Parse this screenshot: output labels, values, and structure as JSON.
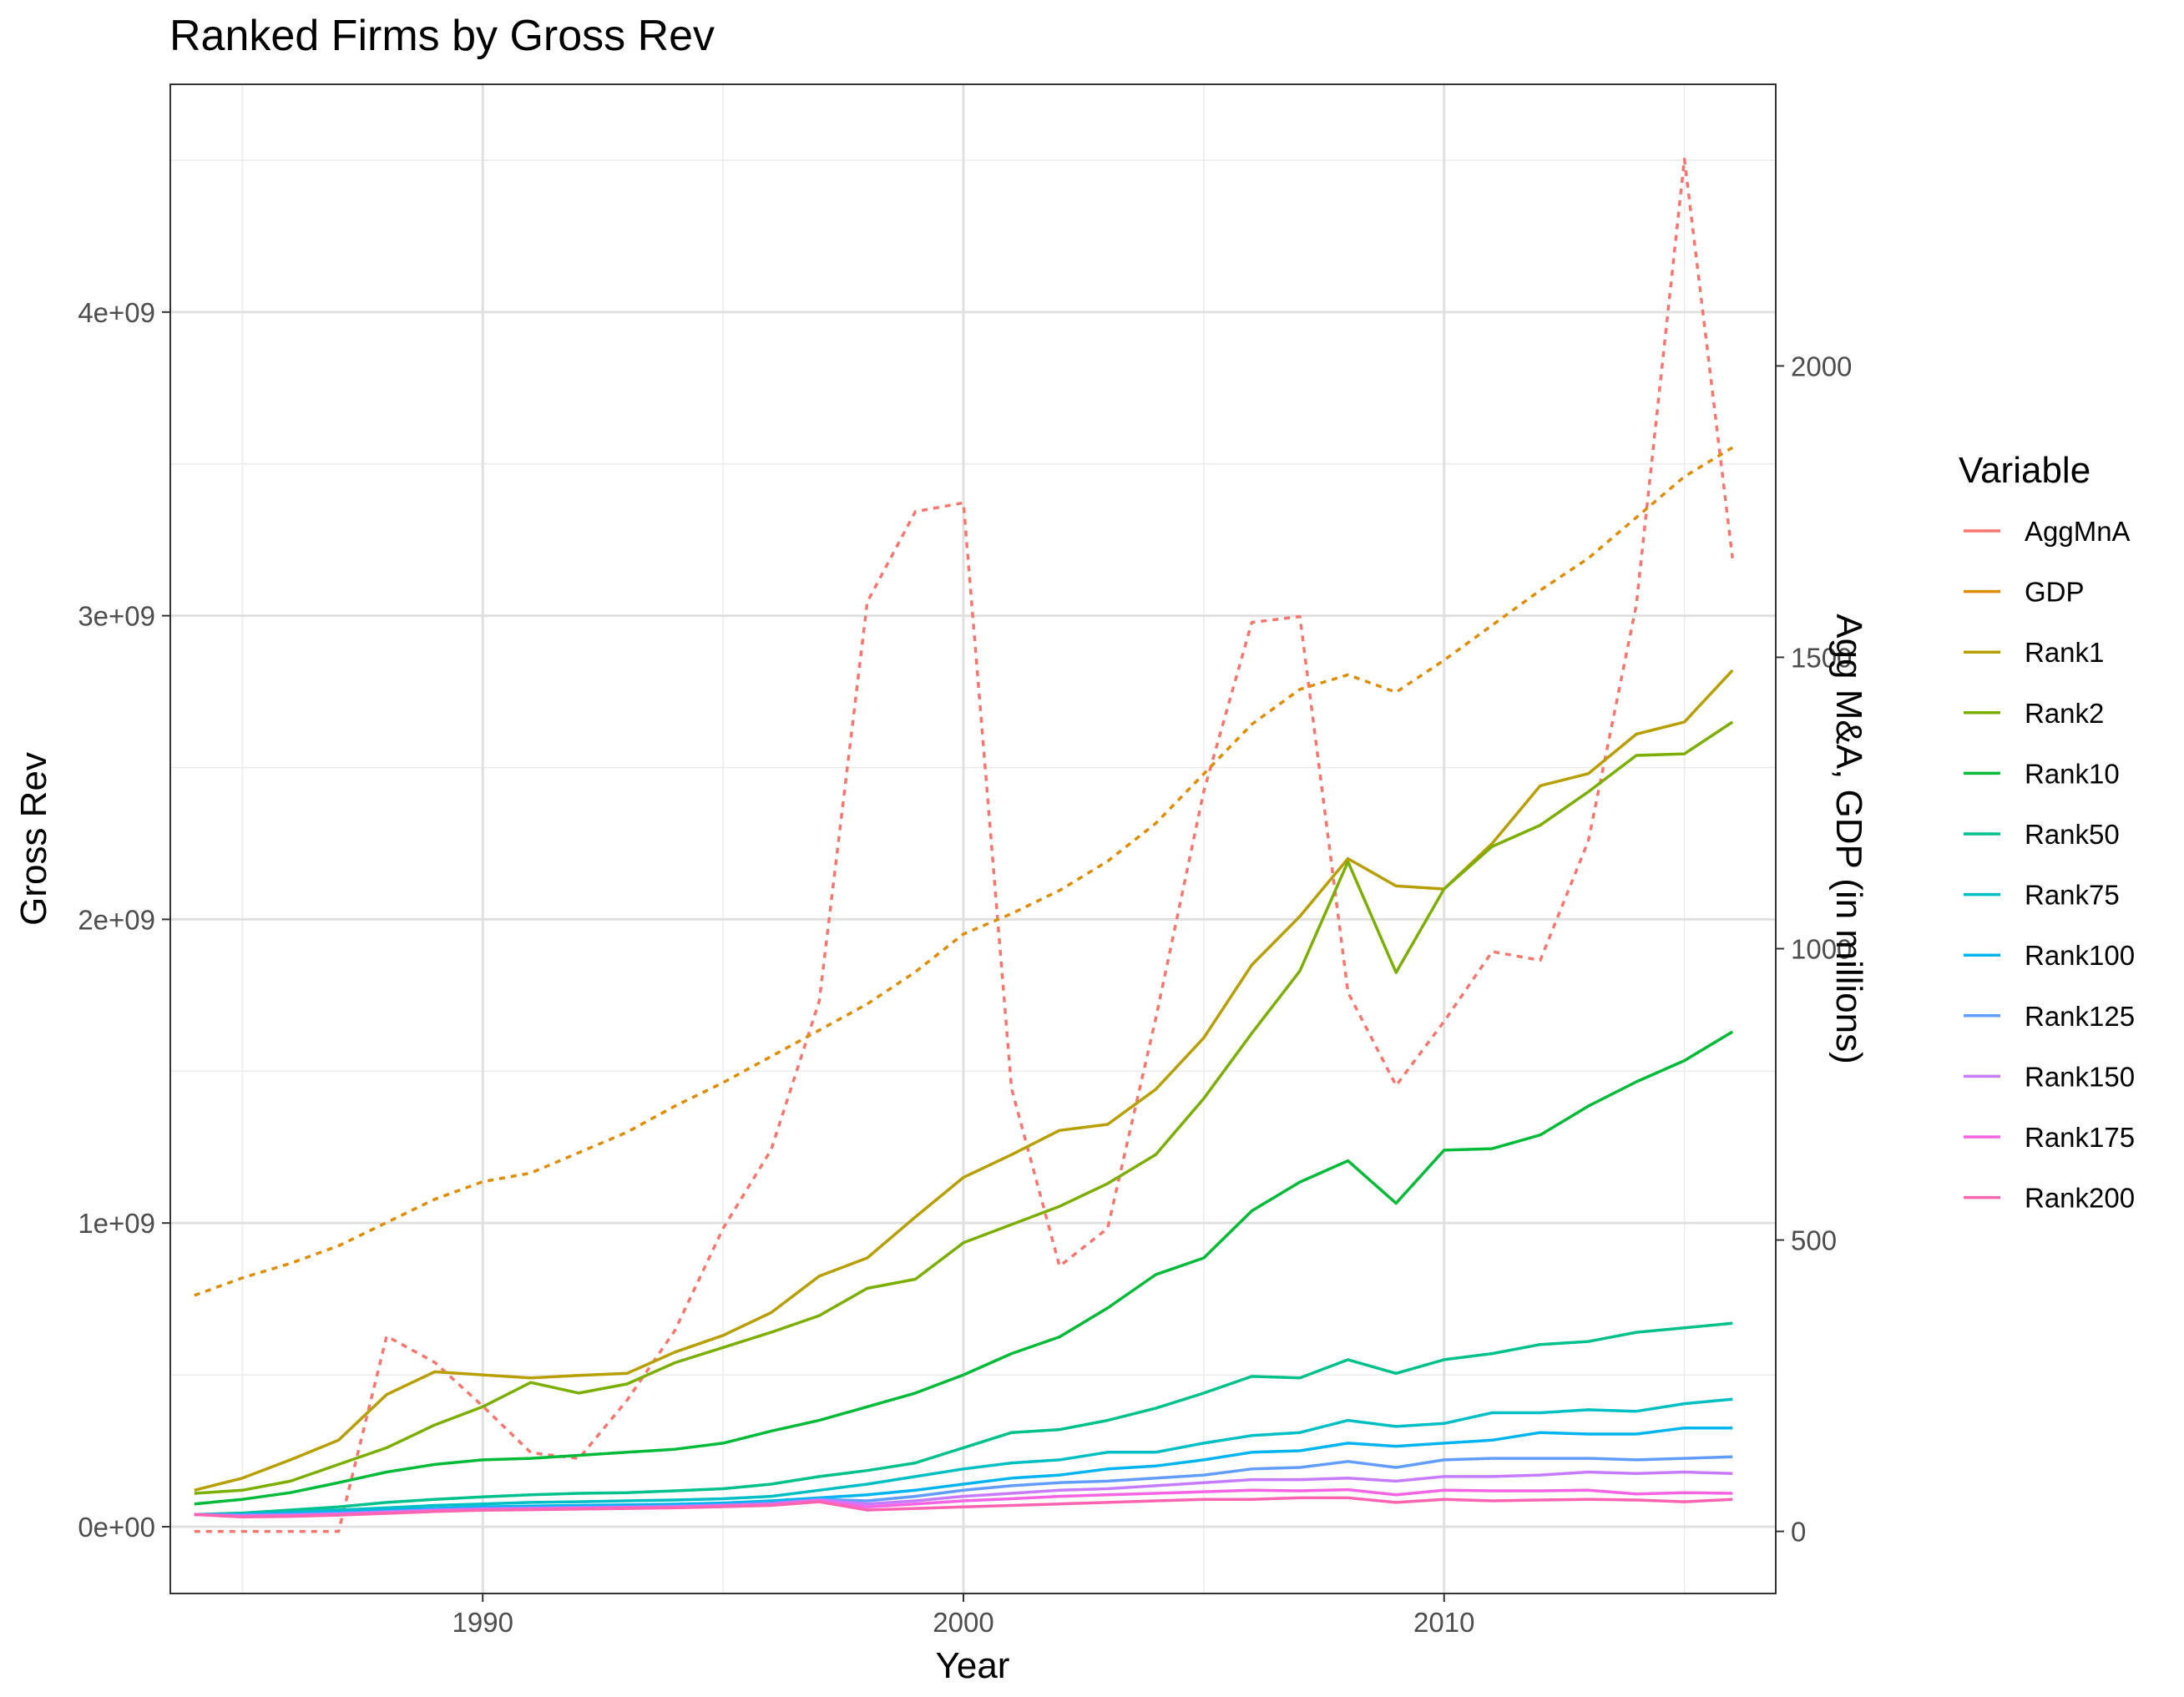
{
  "chart_data": {
    "type": "line",
    "title": "Ranked Firms by Gross Rev",
    "xlabel": "Year",
    "ylabel": "Gross Rev",
    "y2label": "Agg M&A, GDP (in millions)",
    "xlim": [
      1983.5,
      2016.9
    ],
    "ylim": [
      -220000000,
      4750000000
    ],
    "y2lim": [
      -106.6,
      2483.3
    ],
    "x_ticks": [
      1990,
      2000,
      2010
    ],
    "x_tick_labels": [
      "1990",
      "2000",
      "2010"
    ],
    "y_ticks": [
      0,
      1000000000,
      2000000000,
      3000000000,
      4000000000
    ],
    "y_tick_labels": [
      "0e+00",
      "1e+09",
      "2e+09",
      "3e+09",
      "4e+09"
    ],
    "y2_ticks": [
      0,
      500,
      1000,
      1500,
      2000
    ],
    "y2_tick_labels": [
      "0",
      "500",
      "1000",
      "1500",
      "2000"
    ],
    "grid": true,
    "legend": {
      "title": "Variable",
      "placement": "right",
      "entries": [
        "AggMnA",
        "GDP",
        "Rank1",
        "Rank2",
        "Rank10",
        "Rank50",
        "Rank75",
        "Rank100",
        "Rank125",
        "Rank150",
        "Rank175",
        "Rank200"
      ]
    },
    "x": [
      1984,
      1985,
      1986,
      1987,
      1988,
      1989,
      1990,
      1991,
      1992,
      1993,
      1994,
      1995,
      1996,
      1997,
      1998,
      1999,
      2000,
      2001,
      2002,
      2003,
      2004,
      2005,
      2006,
      2007,
      2008,
      2009,
      2010,
      2011,
      2012,
      2013,
      2014,
      2015,
      2016
    ],
    "series": [
      {
        "name": "AggMnA",
        "axis": "right",
        "dash": "dotted",
        "color": "#F8766D",
        "values": [
          0,
          0,
          0,
          0,
          335,
          290,
          215,
          135,
          125,
          225,
          345,
          520,
          655,
          910,
          1595,
          1750,
          1765,
          760,
          455,
          520,
          880,
          1270,
          1560,
          1570,
          925,
          765,
          875,
          995,
          980,
          1185,
          1590,
          2355,
          1670
        ]
      },
      {
        "name": "GDP",
        "axis": "right",
        "dash": "dotted",
        "color": "#DE8C00",
        "values": [
          405,
          435,
          460,
          490,
          530,
          570,
          600,
          615,
          650,
          685,
          730,
          770,
          815,
          860,
          905,
          960,
          1025,
          1060,
          1100,
          1150,
          1215,
          1300,
          1385,
          1445,
          1470,
          1440,
          1495,
          1555,
          1615,
          1670,
          1740,
          1810,
          1860
        ]
      },
      {
        "name": "Rank1",
        "axis": "left",
        "color": "#B79F00",
        "values": [
          120000000,
          160000000,
          220000000,
          285000000,
          435000000,
          510000000,
          500000000,
          490000000,
          498000000,
          505000000,
          575000000,
          630000000,
          705000000,
          825000000,
          885000000,
          1020000000,
          1150000000,
          1225000000,
          1305000000,
          1325000000,
          1440000000,
          1610000000,
          1850000000,
          2010000000,
          2200000000,
          2110000000,
          2100000000,
          2250000000,
          2440000000,
          2480000000,
          2610000000,
          2650000000,
          2820000000
        ]
      },
      {
        "name": "Rank2",
        "axis": "left",
        "color": "#7CAE00",
        "values": [
          110000000,
          120000000,
          150000000,
          205000000,
          260000000,
          335000000,
          395000000,
          475000000,
          440000000,
          470000000,
          540000000,
          590000000,
          640000000,
          695000000,
          785000000,
          815000000,
          935000000,
          995000000,
          1055000000,
          1130000000,
          1225000000,
          1410000000,
          1625000000,
          1830000000,
          2190000000,
          1825000000,
          2100000000,
          2240000000,
          2310000000,
          2420000000,
          2540000000,
          2545000000,
          2650000000
        ]
      },
      {
        "name": "Rank10",
        "axis": "left",
        "color": "#00BA38",
        "values": [
          75000000,
          90000000,
          112000000,
          145000000,
          180000000,
          205000000,
          220000000,
          225000000,
          235000000,
          245000000,
          255000000,
          275000000,
          315000000,
          350000000,
          395000000,
          440000000,
          500000000,
          570000000,
          625000000,
          720000000,
          830000000,
          885000000,
          1040000000,
          1135000000,
          1205000000,
          1065000000,
          1240000000,
          1245000000,
          1290000000,
          1385000000,
          1465000000,
          1535000000,
          1630000000
        ]
      },
      {
        "name": "Rank50",
        "axis": "left",
        "color": "#00C08B",
        "values": [
          40000000,
          45000000,
          55000000,
          65000000,
          80000000,
          90000000,
          98000000,
          105000000,
          110000000,
          112000000,
          118000000,
          125000000,
          140000000,
          165000000,
          185000000,
          210000000,
          260000000,
          310000000,
          320000000,
          350000000,
          390000000,
          440000000,
          495000000,
          490000000,
          550000000,
          505000000,
          550000000,
          570000000,
          600000000,
          610000000,
          640000000,
          655000000,
          670000000
        ]
      },
      {
        "name": "Rank75",
        "axis": "left",
        "color": "#00BFC4",
        "values": [
          40000000,
          42000000,
          48000000,
          55000000,
          62000000,
          70000000,
          75000000,
          80000000,
          82000000,
          85000000,
          88000000,
          92000000,
          100000000,
          120000000,
          140000000,
          165000000,
          190000000,
          210000000,
          220000000,
          245000000,
          245000000,
          275000000,
          300000000,
          310000000,
          350000000,
          330000000,
          340000000,
          375000000,
          375000000,
          385000000,
          380000000,
          405000000,
          420000000
        ]
      },
      {
        "name": "Rank100",
        "axis": "left",
        "color": "#00B4F0",
        "values": [
          40000000,
          40000000,
          44000000,
          48000000,
          54000000,
          60000000,
          65000000,
          68000000,
          70000000,
          72000000,
          74000000,
          78000000,
          85000000,
          95000000,
          105000000,
          120000000,
          140000000,
          160000000,
          170000000,
          190000000,
          200000000,
          220000000,
          245000000,
          250000000,
          275000000,
          265000000,
          275000000,
          285000000,
          310000000,
          305000000,
          305000000,
          325000000,
          325000000
        ]
      },
      {
        "name": "Rank125",
        "axis": "left",
        "color": "#619CFF",
        "values": [
          40000000,
          38000000,
          40000000,
          44000000,
          50000000,
          56000000,
          60000000,
          62000000,
          64000000,
          66000000,
          68000000,
          72000000,
          78000000,
          90000000,
          85000000,
          100000000,
          120000000,
          135000000,
          145000000,
          150000000,
          160000000,
          170000000,
          190000000,
          195000000,
          215000000,
          195000000,
          220000000,
          225000000,
          225000000,
          225000000,
          220000000,
          225000000,
          230000000
        ]
      },
      {
        "name": "Rank150",
        "axis": "left",
        "color": "#C77CFF",
        "values": [
          40000000,
          36000000,
          38000000,
          42000000,
          48000000,
          54000000,
          58000000,
          60000000,
          62000000,
          64000000,
          66000000,
          70000000,
          75000000,
          88000000,
          75000000,
          85000000,
          100000000,
          110000000,
          120000000,
          125000000,
          135000000,
          145000000,
          155000000,
          155000000,
          160000000,
          150000000,
          165000000,
          165000000,
          170000000,
          180000000,
          175000000,
          180000000,
          175000000
        ]
      },
      {
        "name": "Rank175",
        "axis": "left",
        "color": "#F564E3",
        "values": [
          40000000,
          34000000,
          36000000,
          40000000,
          46000000,
          52000000,
          56000000,
          58000000,
          60000000,
          62000000,
          64000000,
          68000000,
          72000000,
          85000000,
          65000000,
          75000000,
          85000000,
          92000000,
          100000000,
          105000000,
          110000000,
          115000000,
          120000000,
          118000000,
          122000000,
          105000000,
          120000000,
          118000000,
          118000000,
          120000000,
          108000000,
          112000000,
          110000000
        ]
      },
      {
        "name": "Rank200",
        "axis": "left",
        "color": "#FF64B0",
        "values": [
          40000000,
          32000000,
          34000000,
          38000000,
          44000000,
          50000000,
          54000000,
          56000000,
          58000000,
          60000000,
          62000000,
          66000000,
          70000000,
          82000000,
          55000000,
          60000000,
          65000000,
          70000000,
          75000000,
          80000000,
          85000000,
          90000000,
          90000000,
          95000000,
          95000000,
          80000000,
          90000000,
          85000000,
          88000000,
          90000000,
          88000000,
          82000000,
          90000000
        ]
      }
    ]
  }
}
